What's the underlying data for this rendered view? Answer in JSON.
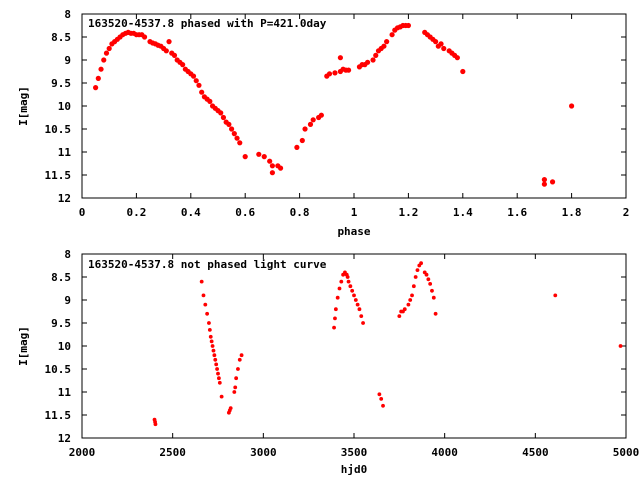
{
  "chart_data": [
    {
      "type": "scatter",
      "title": "163520-4537.8 phased with P=421.0day",
      "xlabel": "phase",
      "ylabel": "I[mag]",
      "xlim": [
        0,
        2
      ],
      "ylim": [
        8,
        12
      ],
      "y_inverted": true,
      "x_ticks": [
        "0",
        "0.2",
        "0.4",
        "0.6",
        "0.8",
        "1",
        "1.2",
        "1.4",
        "1.6",
        "1.8",
        "2"
      ],
      "y_ticks": [
        "8",
        "8.5",
        "9",
        "9.5",
        "10",
        "10.5",
        "11",
        "11.5",
        "12"
      ],
      "color": "#ff0000",
      "series": [
        {
          "x": [
            0.05,
            0.06,
            0.07,
            0.08,
            0.09,
            0.1,
            0.11,
            0.12,
            0.13,
            0.14,
            0.15,
            0.16,
            0.17,
            0.18,
            0.19,
            0.2,
            0.21,
            0.22,
            0.23,
            0.25,
            0.26,
            0.27,
            0.28,
            0.29,
            0.3,
            0.31,
            0.32,
            0.33,
            0.34,
            0.35,
            0.36,
            0.37,
            0.38,
            0.39,
            0.4,
            0.41,
            0.42,
            0.43,
            0.44,
            0.45,
            0.46,
            0.47,
            0.48,
            0.49,
            0.5,
            0.51,
            0.52,
            0.53,
            0.54,
            0.55,
            0.56,
            0.57,
            0.58,
            0.6,
            0.65,
            0.67,
            0.69,
            0.7,
            0.7,
            0.72,
            0.73,
            0.79,
            0.81,
            0.82,
            0.84,
            0.85,
            0.87,
            0.88,
            0.9,
            0.91,
            0.93,
            0.95,
            0.95,
            0.96,
            0.97,
            0.98,
            1.02,
            1.03,
            1.04,
            1.05,
            1.07,
            1.08,
            1.09,
            1.1,
            1.11,
            1.12,
            1.14,
            1.15,
            1.16,
            1.17,
            1.18,
            1.19,
            1.2,
            1.26,
            1.27,
            1.28,
            1.29,
            1.3,
            1.31,
            1.32,
            1.33,
            1.35,
            1.36,
            1.37,
            1.38,
            1.4,
            1.7,
            1.7,
            1.73,
            1.8
          ],
          "y": [
            9.6,
            9.4,
            9.2,
            9.0,
            8.85,
            8.75,
            8.65,
            8.6,
            8.55,
            8.5,
            8.45,
            8.42,
            8.4,
            8.42,
            8.42,
            8.45,
            8.45,
            8.45,
            8.5,
            8.6,
            8.63,
            8.65,
            8.68,
            8.7,
            8.75,
            8.8,
            8.6,
            8.85,
            8.9,
            9.0,
            9.05,
            9.1,
            9.2,
            9.25,
            9.3,
            9.35,
            9.45,
            9.55,
            9.7,
            9.8,
            9.85,
            9.9,
            10.0,
            10.05,
            10.1,
            10.15,
            10.25,
            10.35,
            10.4,
            10.5,
            10.6,
            10.7,
            10.8,
            11.1,
            11.05,
            11.1,
            11.2,
            11.3,
            11.45,
            11.3,
            11.35,
            10.9,
            10.75,
            10.5,
            10.4,
            10.3,
            10.25,
            10.2,
            9.35,
            9.3,
            9.28,
            9.25,
            8.95,
            9.2,
            9.22,
            9.22,
            9.15,
            9.1,
            9.1,
            9.05,
            9.0,
            8.9,
            8.8,
            8.75,
            8.7,
            8.6,
            8.45,
            8.35,
            8.3,
            8.28,
            8.25,
            8.25,
            8.25,
            8.4,
            8.45,
            8.5,
            8.55,
            8.6,
            8.7,
            8.65,
            8.75,
            8.8,
            8.85,
            8.9,
            8.95,
            9.25,
            11.6,
            11.7,
            11.65,
            10.0
          ]
        }
      ]
    },
    {
      "type": "scatter",
      "title": "163520-4537.8 not phased light curve",
      "xlabel": "hjd0",
      "ylabel": "I[mag]",
      "xlim": [
        2000,
        5000
      ],
      "ylim": [
        8,
        12
      ],
      "y_inverted": true,
      "x_ticks": [
        "2000",
        "2500",
        "3000",
        "3500",
        "4000",
        "4500",
        "5000"
      ],
      "y_ticks": [
        "8",
        "8.5",
        "9",
        "9.5",
        "10",
        "10.5",
        "11",
        "11.5",
        "12"
      ],
      "color": "#ff0000",
      "series": [
        {
          "x": [
            2400,
            2403,
            2405,
            2660,
            2670,
            2680,
            2690,
            2700,
            2705,
            2710,
            2715,
            2720,
            2725,
            2730,
            2735,
            2740,
            2745,
            2750,
            2755,
            2760,
            2770,
            2810,
            2815,
            2820,
            2840,
            2845,
            2850,
            2860,
            2870,
            2880,
            3390,
            3395,
            3400,
            3410,
            3420,
            3430,
            3440,
            3450,
            3460,
            3465,
            3470,
            3480,
            3490,
            3500,
            3510,
            3520,
            3530,
            3540,
            3550,
            3640,
            3650,
            3660,
            3750,
            3760,
            3770,
            3780,
            3800,
            3810,
            3820,
            3830,
            3840,
            3850,
            3860,
            3870,
            3890,
            3900,
            3910,
            3920,
            3930,
            3940,
            3950,
            4610,
            4970
          ],
          "y": [
            11.6,
            11.65,
            11.7,
            8.6,
            8.9,
            9.1,
            9.3,
            9.5,
            9.65,
            9.8,
            9.9,
            10.0,
            10.1,
            10.2,
            10.3,
            10.4,
            10.5,
            10.6,
            10.7,
            10.8,
            11.1,
            11.45,
            11.4,
            11.35,
            11.0,
            10.9,
            10.7,
            10.5,
            10.3,
            10.2,
            9.6,
            9.4,
            9.2,
            8.95,
            8.75,
            8.6,
            8.45,
            8.4,
            8.45,
            8.5,
            8.6,
            8.7,
            8.8,
            8.9,
            9.0,
            9.1,
            9.2,
            9.35,
            9.5,
            11.05,
            11.15,
            11.3,
            9.35,
            9.25,
            9.25,
            9.2,
            9.1,
            9.0,
            8.9,
            8.7,
            8.5,
            8.35,
            8.25,
            8.2,
            8.4,
            8.45,
            8.55,
            8.65,
            8.8,
            8.95,
            9.3,
            8.9,
            10.0
          ]
        }
      ]
    }
  ]
}
